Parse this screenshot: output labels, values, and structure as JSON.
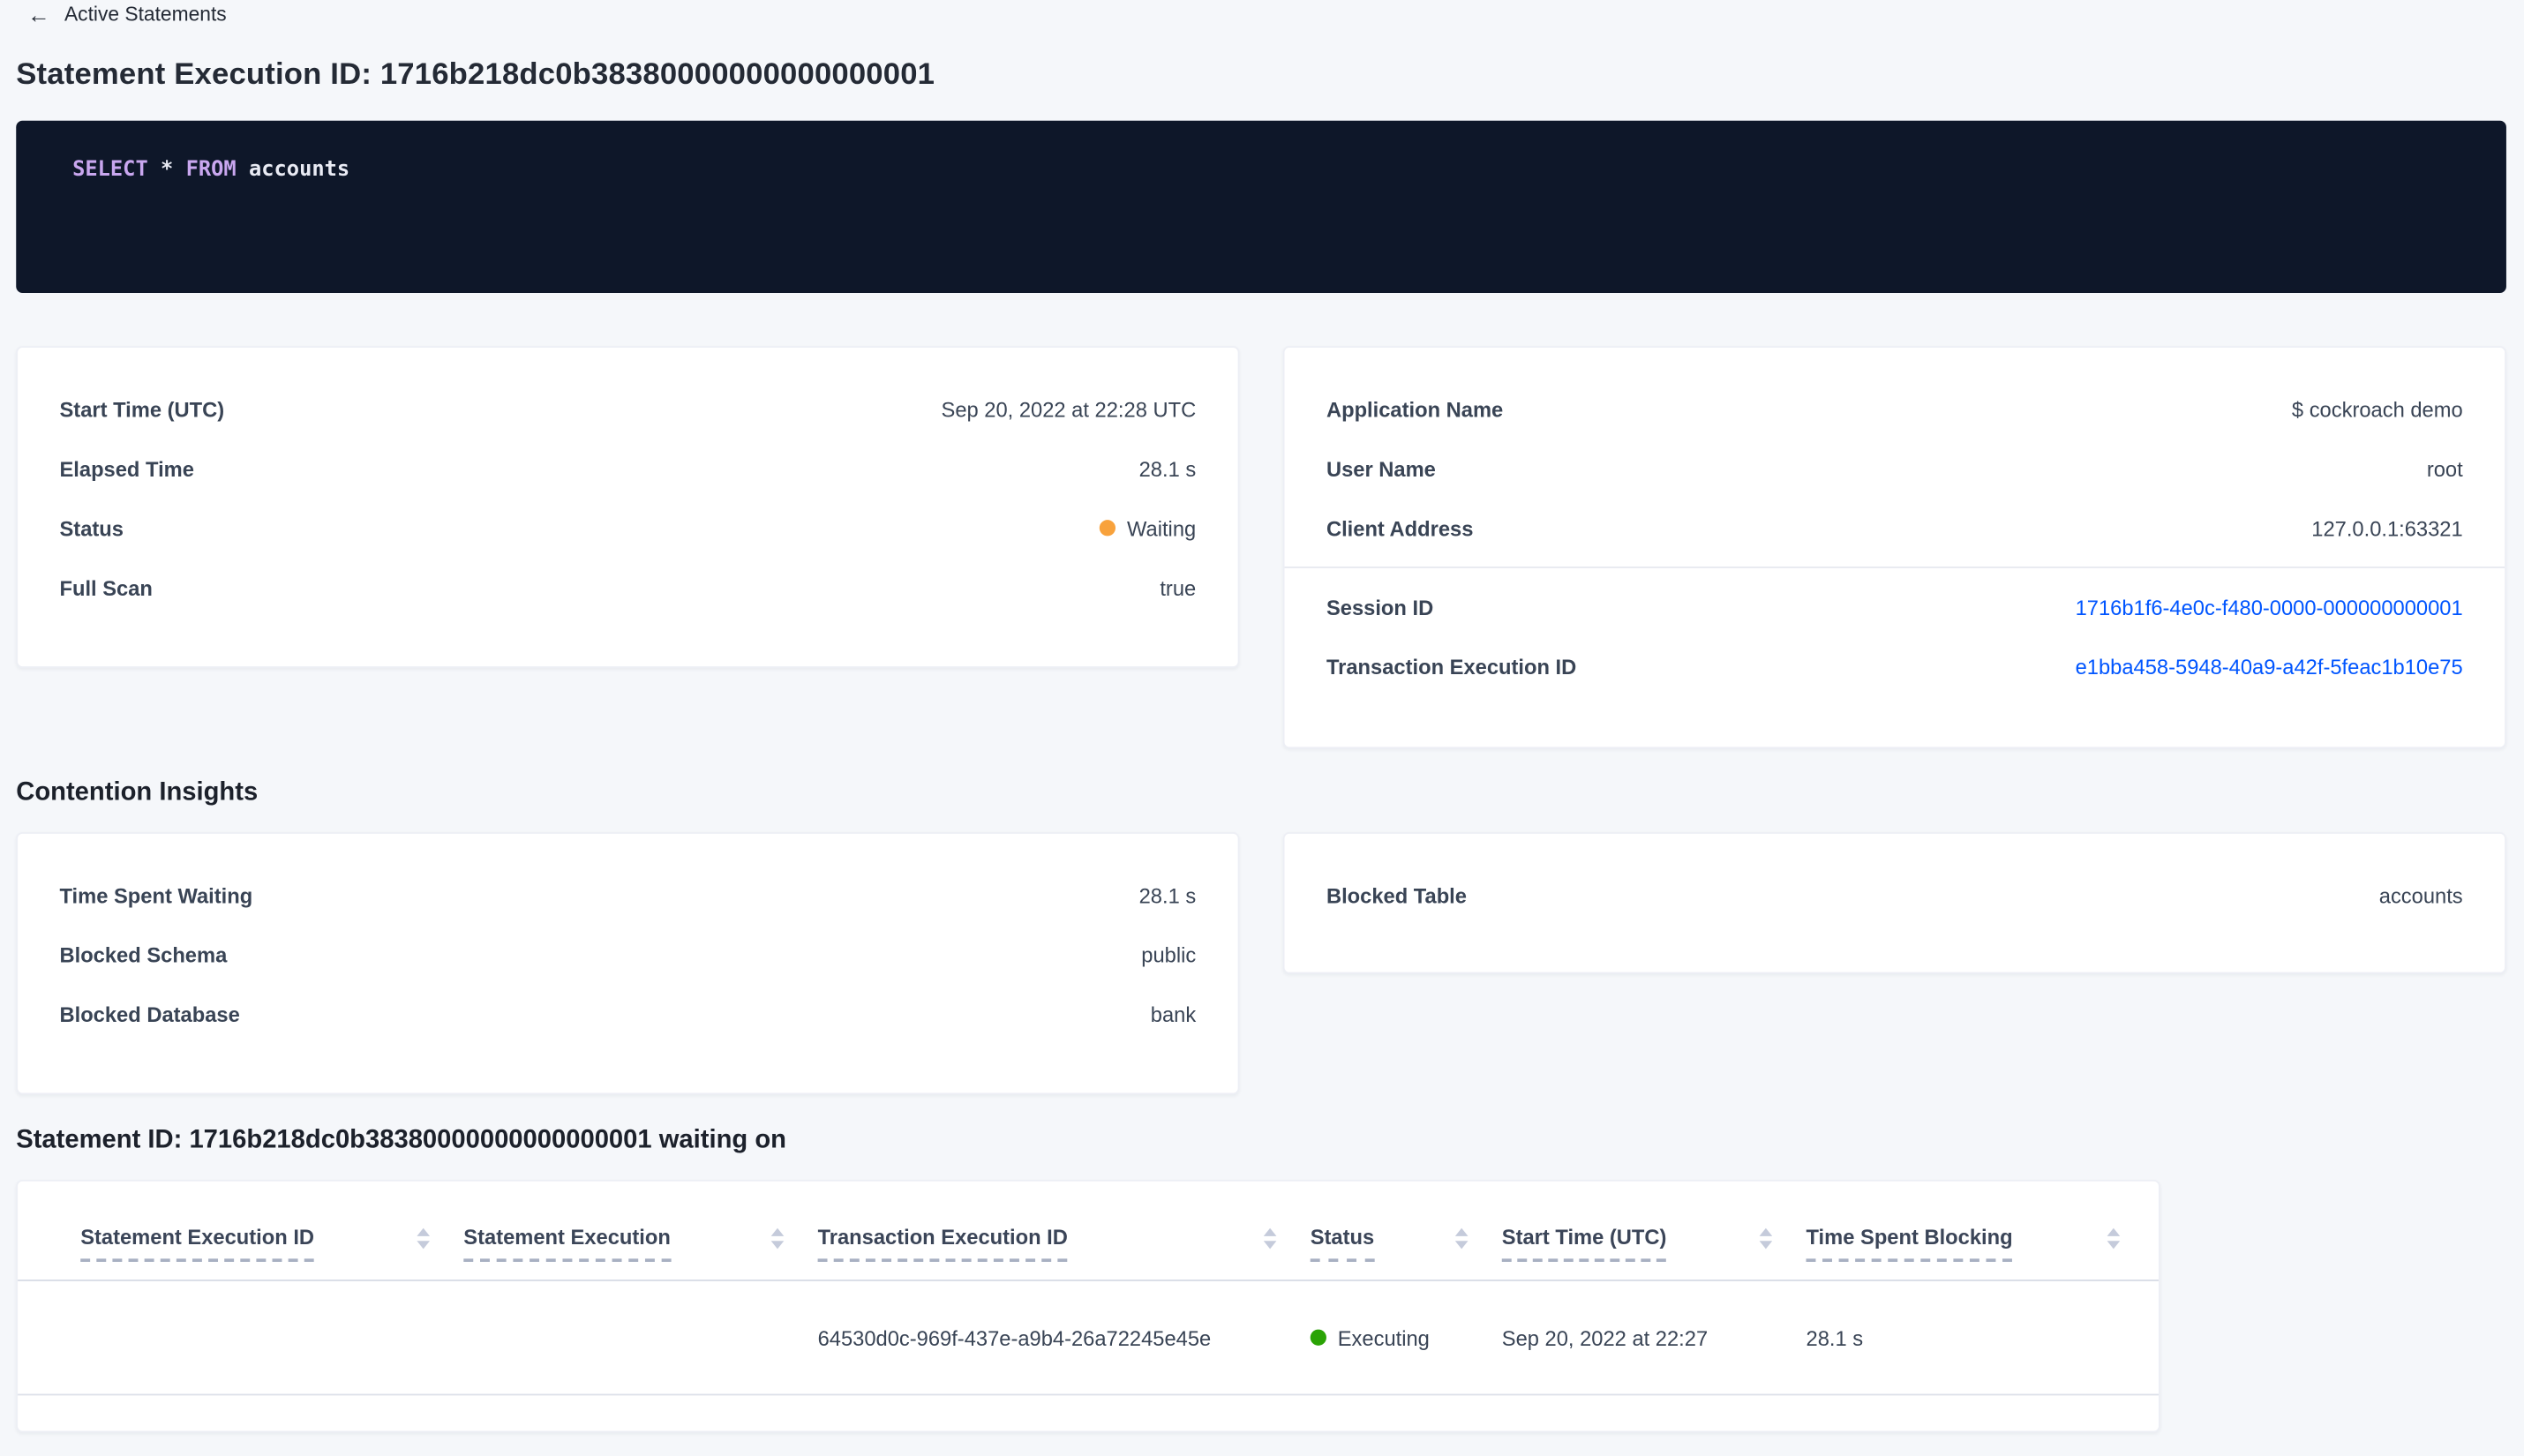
{
  "icons": {
    "back_arrow": "←",
    "sort_asc": "▲",
    "sort_desc": "▼",
    "status_dot": "●"
  },
  "colors": {
    "link": "#0055ff",
    "status_waiting": "#f8a23c",
    "status_executing": "#2aa305",
    "sql_background": "#0e1729",
    "page_background": "#f5f7fa"
  },
  "page": {
    "back_link": "Active Statements",
    "title": "Statement Execution ID: 1716b218dc0b38380000000000000001"
  },
  "sql": {
    "select": "SELECT",
    "star": " * ",
    "from": "FROM",
    "table": " accounts"
  },
  "execution_details": {
    "rows": [
      {
        "label": "Start Time (UTC)",
        "value": "Sep 20, 2022 at 22:28 UTC"
      },
      {
        "label": "Elapsed Time",
        "value": "28.1 s"
      },
      {
        "label": "Status",
        "value": "Waiting"
      },
      {
        "label": "Full Scan",
        "value": "true"
      }
    ]
  },
  "session_details": {
    "rows": [
      {
        "label": "Application Name",
        "value": "$ cockroach demo"
      },
      {
        "label": "User Name",
        "value": "root"
      },
      {
        "label": "Client Address",
        "value": "127.0.0.1:63321"
      }
    ],
    "link_rows": [
      {
        "label": "Session ID",
        "value": "1716b1f6-4e0c-f480-0000-000000000001"
      },
      {
        "label": "Transaction Execution ID",
        "value": "e1bba458-5948-40a9-a42f-5feac1b10e75"
      }
    ]
  },
  "contention": {
    "heading": "Contention Insights",
    "left_rows": [
      {
        "label": "Time Spent Waiting",
        "value": "28.1 s"
      },
      {
        "label": "Blocked Schema",
        "value": "public"
      },
      {
        "label": "Blocked Database",
        "value": "bank"
      }
    ],
    "right_rows": [
      {
        "label": "Blocked Table",
        "value": "accounts"
      }
    ]
  },
  "waiting_table": {
    "heading": "Statement ID: 1716b218dc0b38380000000000000001 waiting on",
    "columns": [
      "Statement Execution ID",
      "Statement Execution",
      "Transaction Execution ID",
      "Status",
      "Start Time (UTC)",
      "Time Spent Blocking"
    ],
    "rows": [
      {
        "statement_execution_id": "",
        "statement_execution": "",
        "transaction_execution_id": "64530d0c-969f-437e-a9b4-26a72245e45e",
        "status": "Executing",
        "start_time": "Sep 20, 2022 at 22:27",
        "time_spent_blocking": "28.1 s"
      }
    ]
  }
}
